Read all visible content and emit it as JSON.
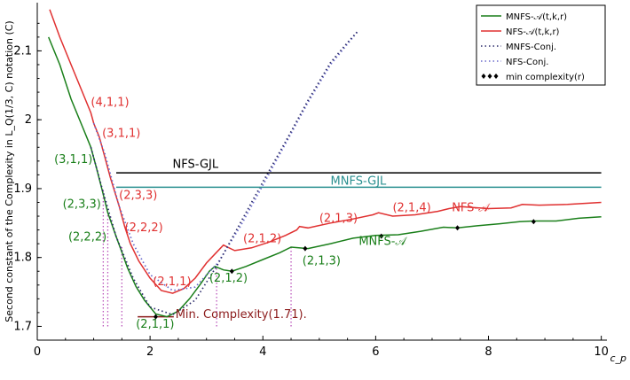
{
  "chart_data": {
    "type": "line",
    "xlabel": "c_p",
    "ylabel": "Second constant of the Complexity in L_Q(1/3, C) notation (C)",
    "xlim": [
      0,
      10.1
    ],
    "ylim": [
      1.68,
      2.17
    ],
    "xticks": [
      "0",
      "2",
      "4",
      "6",
      "8",
      "10"
    ],
    "yticks": [
      "1.7",
      "1.8",
      "1.9",
      "2",
      "2.1"
    ],
    "xtick_values": [
      0,
      2,
      4,
      6,
      8,
      10
    ],
    "ytick_values": [
      1.7,
      1.8,
      1.9,
      2.0,
      2.1
    ],
    "grid": false,
    "legend_position": "top-right",
    "colors": {
      "mnfs": "#1a7f1a",
      "nfs": "#e03030",
      "nfs_conj": "#4444aa",
      "mnfs_conj": "#4444aa",
      "gjl_nfs": "#000000",
      "gjl_mnfs": "#2a9090",
      "vline": "#bb55bb",
      "min": "#8b1a1a"
    },
    "legend": [
      {
        "label": "MNFS-𝒜(t,k,r)",
        "style": "solid",
        "color": "#1a7f1a"
      },
      {
        "label": "NFS-𝒜(t,k,r)",
        "style": "solid",
        "color": "#e03030"
      },
      {
        "label": "MNFS-Conj.",
        "style": "dotted",
        "color": "#2a2a6a"
      },
      {
        "label": "NFS-Conj.",
        "style": "dotted",
        "color": "#6a6acc"
      },
      {
        "label": "min complexity(r)",
        "style": "diamonds",
        "color": "#000000"
      }
    ],
    "series": [
      {
        "name": "NFS-𝒜(t,k,r)",
        "style": "solid",
        "color": "#e03030",
        "x": [
          0.22,
          0.4,
          0.6,
          0.8,
          0.95,
          1.0,
          1.1,
          1.2,
          1.3,
          1.45,
          1.55,
          1.65,
          1.8,
          2.0,
          2.2,
          2.4,
          2.6,
          2.8,
          3.0,
          3.15,
          3.3,
          3.5,
          3.8,
          4.1,
          4.4,
          4.6,
          4.65,
          4.8,
          5.2,
          5.6,
          5.95,
          6.05,
          6.3,
          6.7,
          7.1,
          7.3,
          7.5,
          8.0,
          8.4,
          8.6,
          8.9,
          9.4,
          10.0
        ],
        "y": [
          2.16,
          2.12,
          2.08,
          2.04,
          2.01,
          1.995,
          1.975,
          1.945,
          1.915,
          1.875,
          1.845,
          1.82,
          1.795,
          1.77,
          1.752,
          1.748,
          1.755,
          1.77,
          1.792,
          1.805,
          1.818,
          1.81,
          1.814,
          1.822,
          1.832,
          1.84,
          1.845,
          1.843,
          1.85,
          1.856,
          1.862,
          1.865,
          1.86,
          1.862,
          1.867,
          1.871,
          1.874,
          1.871,
          1.872,
          1.877,
          1.876,
          1.877,
          1.88
        ]
      },
      {
        "name": "MNFS-𝒜(t,k,r)",
        "style": "solid",
        "color": "#1a7f1a",
        "x": [
          0.2,
          0.4,
          0.6,
          0.8,
          0.95,
          1.05,
          1.15,
          1.25,
          1.4,
          1.5,
          1.6,
          1.75,
          1.9,
          2.1,
          2.3,
          2.5,
          2.7,
          2.9,
          3.05,
          3.15,
          3.3,
          3.45,
          3.7,
          4.0,
          4.3,
          4.5,
          4.8,
          5.2,
          5.6,
          6.0,
          6.4,
          6.8,
          7.2,
          7.45,
          7.8,
          8.2,
          8.55,
          8.8,
          9.2,
          9.6,
          10.0
        ],
        "y": [
          2.12,
          2.08,
          2.03,
          1.99,
          1.96,
          1.93,
          1.898,
          1.865,
          1.83,
          1.808,
          1.785,
          1.758,
          1.738,
          1.718,
          1.714,
          1.722,
          1.74,
          1.762,
          1.78,
          1.787,
          1.782,
          1.78,
          1.787,
          1.797,
          1.807,
          1.815,
          1.813,
          1.82,
          1.828,
          1.832,
          1.833,
          1.838,
          1.844,
          1.843,
          1.846,
          1.849,
          1.852,
          1.853,
          1.853,
          1.857,
          1.859
        ]
      },
      {
        "name": "NFS-Conj.",
        "style": "dotted",
        "color": "#6a6acc",
        "x": [
          1.0,
          1.2,
          1.45,
          1.7,
          2.0,
          2.4,
          2.8,
          3.2,
          3.6,
          4.0,
          4.4,
          4.8,
          5.2,
          5.5,
          5.7
        ],
        "y": [
          1.995,
          1.95,
          1.875,
          1.82,
          1.775,
          1.752,
          1.757,
          1.792,
          1.845,
          1.905,
          1.965,
          2.025,
          2.08,
          2.11,
          2.13
        ]
      },
      {
        "name": "MNFS-Conj.",
        "style": "dotted",
        "color": "#2a2a6a",
        "x": [
          0.95,
          1.15,
          1.4,
          1.7,
          2.0,
          2.4,
          2.8,
          3.2,
          3.6,
          4.0,
          4.4,
          4.8,
          5.2,
          5.5,
          5.7
        ],
        "y": [
          1.96,
          1.9,
          1.83,
          1.77,
          1.728,
          1.717,
          1.738,
          1.79,
          1.85,
          1.91,
          1.968,
          2.028,
          2.083,
          2.112,
          2.13
        ]
      },
      {
        "name": "NFS-GJL",
        "style": "solid",
        "color": "#000000",
        "x": [
          1.4,
          10.0
        ],
        "y": [
          1.923,
          1.923
        ]
      },
      {
        "name": "MNFS-GJL",
        "style": "solid",
        "color": "#2a9090",
        "x": [
          1.4,
          10.0
        ],
        "y": [
          1.902,
          1.902
        ]
      }
    ],
    "min_complexity_markers": [
      {
        "x": 2.1,
        "y": 1.714
      },
      {
        "x": 3.45,
        "y": 1.78
      },
      {
        "x": 4.75,
        "y": 1.813
      },
      {
        "x": 6.1,
        "y": 1.831
      },
      {
        "x": 7.45,
        "y": 1.843
      },
      {
        "x": 8.8,
        "y": 1.852
      }
    ],
    "vertical_lines": [
      {
        "x": 1.17,
        "y0": 1.7,
        "y1": 1.898
      },
      {
        "x": 1.25,
        "y0": 1.7,
        "y1": 1.865
      },
      {
        "x": 1.5,
        "y0": 1.7,
        "y1": 1.815
      },
      {
        "x": 3.18,
        "y0": 1.7,
        "y1": 1.785
      },
      {
        "x": 4.5,
        "y0": 1.7,
        "y1": 1.815
      }
    ],
    "min_line": {
      "x0": 1.78,
      "x1": 2.42,
      "y": 1.714
    },
    "annotations": [
      {
        "text": "(4,1,1)",
        "x": 0.95,
        "y": 2.02,
        "color": "#e03030"
      },
      {
        "text": "(3,1,1)",
        "x": 1.15,
        "y": 1.975,
        "color": "#e03030"
      },
      {
        "text": "(2,3,3)",
        "x": 1.45,
        "y": 1.885,
        "color": "#e03030"
      },
      {
        "text": "(2,2,2)",
        "x": 1.55,
        "y": 1.838,
        "color": "#e03030"
      },
      {
        "text": "(2,1,1)",
        "x": 2.05,
        "y": 1.76,
        "color": "#e03030"
      },
      {
        "text": "(2,1,2)",
        "x": 3.65,
        "y": 1.822,
        "color": "#e03030"
      },
      {
        "text": "(2,1,3)",
        "x": 5.0,
        "y": 1.852,
        "color": "#e03030"
      },
      {
        "text": "(2,1,4)",
        "x": 6.3,
        "y": 1.867,
        "color": "#e03030"
      },
      {
        "text": "NFS-𝒜",
        "x": 7.35,
        "y": 1.867,
        "color": "#e03030"
      },
      {
        "text": "(3,1,1)",
        "x": 0.3,
        "y": 1.937,
        "color": "#1a7f1a"
      },
      {
        "text": "(2,3,3)",
        "x": 0.45,
        "y": 1.872,
        "color": "#1a7f1a"
      },
      {
        "text": "(2,2,2)",
        "x": 0.55,
        "y": 1.825,
        "color": "#1a7f1a"
      },
      {
        "text": "(2,1,1)",
        "x": 1.75,
        "y": 1.698,
        "color": "#1a7f1a"
      },
      {
        "text": "(2,1,2)",
        "x": 3.05,
        "y": 1.765,
        "color": "#1a7f1a"
      },
      {
        "text": "(2,1,3)",
        "x": 4.7,
        "y": 1.79,
        "color": "#1a7f1a"
      },
      {
        "text": "MNFS-𝒜",
        "x": 5.7,
        "y": 1.818,
        "color": "#1a7f1a"
      },
      {
        "text": "NFS-GJL",
        "x": 2.4,
        "y": 1.93,
        "color": "#000000"
      },
      {
        "text": "MNFS-GJL",
        "x": 5.2,
        "y": 1.906,
        "color": "#2a9090"
      },
      {
        "text": "Min. Complexity(1.71).",
        "x": 2.45,
        "y": 1.712,
        "color": "#8b1a1a"
      }
    ]
  }
}
